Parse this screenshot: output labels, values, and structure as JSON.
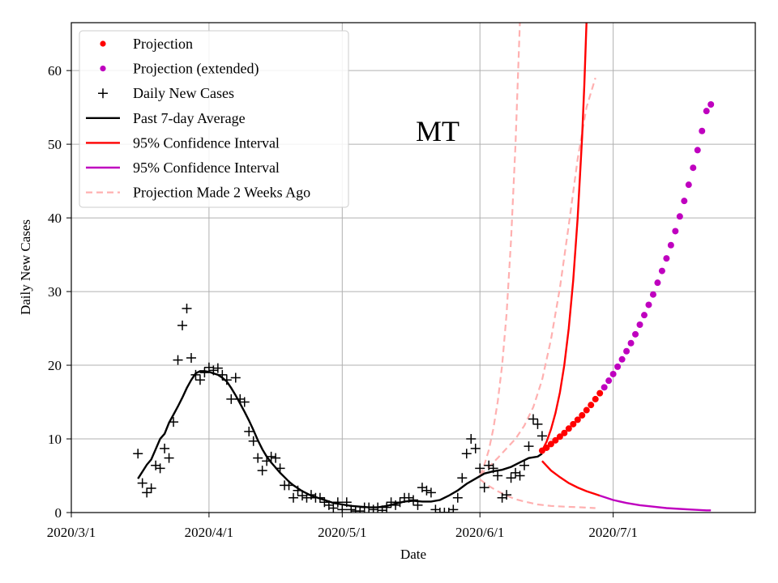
{
  "chart_data": {
    "type": "line",
    "state_label": "MT",
    "xlabel": "Date",
    "ylabel": "Daily New Cases",
    "x_start": "2020-03-01",
    "xlim": [
      "2020-03-01",
      "2020-08-02"
    ],
    "ylim": [
      0,
      66.5
    ],
    "x_ticks": [
      {
        "date": "2020-03-01",
        "label": "2020/3/1"
      },
      {
        "date": "2020-04-01",
        "label": "2020/4/1"
      },
      {
        "date": "2020-05-01",
        "label": "2020/5/1"
      },
      {
        "date": "2020-06-01",
        "label": "2020/6/1"
      },
      {
        "date": "2020-07-01",
        "label": "2020/7/1"
      }
    ],
    "y_ticks": [
      0,
      10,
      20,
      30,
      40,
      50,
      60
    ],
    "grid": true,
    "legend_position": "top-left",
    "legend": [
      {
        "label": "Projection",
        "kind": "dot",
        "color": "#ff0000"
      },
      {
        "label": "Projection (extended)",
        "kind": "dot",
        "color": "#bf00bf"
      },
      {
        "label": "Daily New Cases",
        "kind": "plus",
        "color": "#000000"
      },
      {
        "label": "Past 7-day Average",
        "kind": "line",
        "color": "#000000"
      },
      {
        "label": "95% Confidence Interval",
        "kind": "line",
        "color": "#ff0000"
      },
      {
        "label": "95% Confidence Interval",
        "kind": "line",
        "color": "#bf00bf"
      },
      {
        "label": "Projection Made 2 Weeks Ago",
        "kind": "dashed",
        "color": "#ffb0b0"
      }
    ],
    "series": {
      "daily_new_cases": [
        [
          "2020-03-16",
          8
        ],
        [
          "2020-03-17",
          4
        ],
        [
          "2020-03-18",
          2.7
        ],
        [
          "2020-03-19",
          3.3
        ],
        [
          "2020-03-20",
          6.4
        ],
        [
          "2020-03-21",
          6
        ],
        [
          "2020-03-22",
          8.7
        ],
        [
          "2020-03-23",
          7.4
        ],
        [
          "2020-03-24",
          12.3
        ],
        [
          "2020-03-25",
          20.7
        ],
        [
          "2020-03-26",
          25.4
        ],
        [
          "2020-03-27",
          27.7
        ],
        [
          "2020-03-28",
          21
        ],
        [
          "2020-03-29",
          18.7
        ],
        [
          "2020-03-30",
          18
        ],
        [
          "2020-03-31",
          19
        ],
        [
          "2020-04-01",
          19.7
        ],
        [
          "2020-04-02",
          19.3
        ],
        [
          "2020-04-03",
          19.6
        ],
        [
          "2020-04-04",
          18.7
        ],
        [
          "2020-04-05",
          18
        ],
        [
          "2020-04-06",
          15.4
        ],
        [
          "2020-04-07",
          18.3
        ],
        [
          "2020-04-08",
          15.4
        ],
        [
          "2020-04-09",
          15
        ],
        [
          "2020-04-10",
          11
        ],
        [
          "2020-04-11",
          9.7
        ],
        [
          "2020-04-12",
          7.4
        ],
        [
          "2020-04-13",
          5.7
        ],
        [
          "2020-04-14",
          7
        ],
        [
          "2020-04-15",
          7.6
        ],
        [
          "2020-04-16",
          7.4
        ],
        [
          "2020-04-17",
          6
        ],
        [
          "2020-04-18",
          3.7
        ],
        [
          "2020-04-19",
          3.7
        ],
        [
          "2020-04-20",
          2
        ],
        [
          "2020-04-21",
          3
        ],
        [
          "2020-04-22",
          2.3
        ],
        [
          "2020-04-23",
          2
        ],
        [
          "2020-04-24",
          2.4
        ],
        [
          "2020-04-25",
          2
        ],
        [
          "2020-04-26",
          2
        ],
        [
          "2020-04-27",
          1.4
        ],
        [
          "2020-04-28",
          1
        ],
        [
          "2020-04-29",
          0.6
        ],
        [
          "2020-04-30",
          1.4
        ],
        [
          "2020-05-01",
          0.4
        ],
        [
          "2020-05-02",
          1.4
        ],
        [
          "2020-05-03",
          0.4
        ],
        [
          "2020-05-04",
          0.2
        ],
        [
          "2020-05-05",
          0.2
        ],
        [
          "2020-05-06",
          0.7
        ],
        [
          "2020-05-07",
          0.7
        ],
        [
          "2020-05-08",
          0.4
        ],
        [
          "2020-05-09",
          0.7
        ],
        [
          "2020-05-10",
          0.3
        ],
        [
          "2020-05-11",
          0.7
        ],
        [
          "2020-05-12",
          1.4
        ],
        [
          "2020-05-13",
          1
        ],
        [
          "2020-05-14",
          1.4
        ],
        [
          "2020-05-15",
          2
        ],
        [
          "2020-05-16",
          2
        ],
        [
          "2020-05-17",
          1.7
        ],
        [
          "2020-05-18",
          1
        ],
        [
          "2020-05-19",
          3.4
        ],
        [
          "2020-05-20",
          3
        ],
        [
          "2020-05-21",
          2.7
        ],
        [
          "2020-05-22",
          0.4
        ],
        [
          "2020-05-23",
          0
        ],
        [
          "2020-05-24",
          0
        ],
        [
          "2020-05-25",
          0
        ],
        [
          "2020-05-26",
          0.4
        ],
        [
          "2020-05-27",
          2
        ],
        [
          "2020-05-28",
          4.7
        ],
        [
          "2020-05-29",
          8
        ],
        [
          "2020-05-30",
          10
        ],
        [
          "2020-05-31",
          8.7
        ],
        [
          "2020-06-01",
          6
        ],
        [
          "2020-06-02",
          3.4
        ],
        [
          "2020-06-03",
          6.4
        ],
        [
          "2020-06-04",
          6
        ],
        [
          "2020-06-05",
          5
        ],
        [
          "2020-06-06",
          2
        ],
        [
          "2020-06-07",
          2.4
        ],
        [
          "2020-06-08",
          4.7
        ],
        [
          "2020-06-09",
          5.4
        ],
        [
          "2020-06-10",
          5
        ],
        [
          "2020-06-11",
          6.4
        ],
        [
          "2020-06-12",
          9
        ],
        [
          "2020-06-13",
          12.7
        ],
        [
          "2020-06-14",
          12
        ],
        [
          "2020-06-15",
          10.4
        ]
      ],
      "past_7day_average": [
        [
          "2020-03-16",
          4.6
        ],
        [
          "2020-03-18",
          6.5
        ],
        [
          "2020-03-19",
          7.2
        ],
        [
          "2020-03-20",
          8.6
        ],
        [
          "2020-03-21",
          10
        ],
        [
          "2020-03-22",
          10.7
        ],
        [
          "2020-03-23",
          12.2
        ],
        [
          "2020-03-24",
          13.3
        ],
        [
          "2020-03-25",
          14.4
        ],
        [
          "2020-03-26",
          15.6
        ],
        [
          "2020-03-27",
          16.9
        ],
        [
          "2020-03-28",
          18
        ],
        [
          "2020-03-29",
          18.9
        ],
        [
          "2020-03-30",
          19.2
        ],
        [
          "2020-03-31",
          19.2
        ],
        [
          "2020-04-01",
          19.1
        ],
        [
          "2020-04-02",
          18.9
        ],
        [
          "2020-04-03",
          18.7
        ],
        [
          "2020-04-04",
          18.3
        ],
        [
          "2020-04-05",
          17.8
        ],
        [
          "2020-04-06",
          16.9
        ],
        [
          "2020-04-07",
          15.9
        ],
        [
          "2020-04-08",
          14.8
        ],
        [
          "2020-04-09",
          13.7
        ],
        [
          "2020-04-10",
          12.5
        ],
        [
          "2020-04-11",
          11.2
        ],
        [
          "2020-04-12",
          9.8
        ],
        [
          "2020-04-13",
          8.6
        ],
        [
          "2020-04-14",
          7.6
        ],
        [
          "2020-04-15",
          6.8
        ],
        [
          "2020-04-16",
          6.1
        ],
        [
          "2020-04-17",
          5.4
        ],
        [
          "2020-04-18",
          4.8
        ],
        [
          "2020-04-19",
          4.2
        ],
        [
          "2020-04-20",
          3.7
        ],
        [
          "2020-04-21",
          3.3
        ],
        [
          "2020-04-22",
          2.9
        ],
        [
          "2020-04-23",
          2.6
        ],
        [
          "2020-04-24",
          2.3
        ],
        [
          "2020-04-25",
          2.1
        ],
        [
          "2020-04-26",
          1.9
        ],
        [
          "2020-04-27",
          1.7
        ],
        [
          "2020-04-28",
          1.5
        ],
        [
          "2020-04-29",
          1.3
        ],
        [
          "2020-04-30",
          1.2
        ],
        [
          "2020-05-01",
          1.1
        ],
        [
          "2020-05-03",
          0.9
        ],
        [
          "2020-05-05",
          0.8
        ],
        [
          "2020-05-07",
          0.7
        ],
        [
          "2020-05-09",
          0.7
        ],
        [
          "2020-05-11",
          0.9
        ],
        [
          "2020-05-13",
          1.2
        ],
        [
          "2020-05-15",
          1.5
        ],
        [
          "2020-05-17",
          1.6
        ],
        [
          "2020-05-19",
          1.5
        ],
        [
          "2020-05-21",
          1.5
        ],
        [
          "2020-05-23",
          1.7
        ],
        [
          "2020-05-25",
          2.3
        ],
        [
          "2020-05-27",
          3
        ],
        [
          "2020-05-29",
          3.9
        ],
        [
          "2020-05-31",
          4.6
        ],
        [
          "2020-06-02",
          5.3
        ],
        [
          "2020-06-04",
          5.6
        ],
        [
          "2020-06-06",
          5.8
        ],
        [
          "2020-06-08",
          6.2
        ],
        [
          "2020-06-10",
          6.8
        ],
        [
          "2020-06-12",
          7.4
        ],
        [
          "2020-06-14",
          7.6
        ],
        [
          "2020-06-15",
          8
        ]
      ],
      "projection": [
        [
          "2020-06-15",
          8.4
        ],
        [
          "2020-06-16",
          8.8
        ],
        [
          "2020-06-17",
          9.3
        ],
        [
          "2020-06-18",
          9.8
        ],
        [
          "2020-06-19",
          10.3
        ],
        [
          "2020-06-20",
          10.8
        ],
        [
          "2020-06-21",
          11.4
        ],
        [
          "2020-06-22",
          12
        ],
        [
          "2020-06-23",
          12.6
        ],
        [
          "2020-06-24",
          13.2
        ],
        [
          "2020-06-25",
          13.9
        ],
        [
          "2020-06-26",
          14.6
        ],
        [
          "2020-06-27",
          15.4
        ],
        [
          "2020-06-28",
          16.2
        ]
      ],
      "projection_extended": [
        [
          "2020-06-29",
          17
        ],
        [
          "2020-06-30",
          17.9
        ],
        [
          "2020-07-01",
          18.8
        ],
        [
          "2020-07-02",
          19.8
        ],
        [
          "2020-07-03",
          20.8
        ],
        [
          "2020-07-04",
          21.9
        ],
        [
          "2020-07-05",
          23
        ],
        [
          "2020-07-06",
          24.2
        ],
        [
          "2020-07-07",
          25.5
        ],
        [
          "2020-07-08",
          26.8
        ],
        [
          "2020-07-09",
          28.2
        ],
        [
          "2020-07-10",
          29.6
        ],
        [
          "2020-07-11",
          31.2
        ],
        [
          "2020-07-12",
          32.8
        ],
        [
          "2020-07-13",
          34.5
        ],
        [
          "2020-07-14",
          36.3
        ],
        [
          "2020-07-15",
          38.2
        ],
        [
          "2020-07-16",
          40.2
        ],
        [
          "2020-07-17",
          42.3
        ],
        [
          "2020-07-18",
          44.5
        ],
        [
          "2020-07-19",
          46.8
        ],
        [
          "2020-07-20",
          49.2
        ],
        [
          "2020-07-21",
          51.8
        ],
        [
          "2020-07-22",
          54.5
        ],
        [
          "2020-07-23",
          55.4
        ]
      ],
      "ci_upper_red": [
        [
          "2020-06-15",
          8.4
        ],
        [
          "2020-06-16",
          9.6
        ],
        [
          "2020-06-17",
          11.3
        ],
        [
          "2020-06-18",
          13.5
        ],
        [
          "2020-06-19",
          16.3
        ],
        [
          "2020-06-20",
          20
        ],
        [
          "2020-06-21",
          25
        ],
        [
          "2020-06-22",
          31.5
        ],
        [
          "2020-06-23",
          40
        ],
        [
          "2020-06-24",
          51
        ],
        [
          "2020-06-24T12:00:00",
          58
        ],
        [
          "2020-06-25",
          66.5
        ]
      ],
      "ci_lower_red": [
        [
          "2020-06-15",
          7
        ],
        [
          "2020-06-17",
          5.7
        ],
        [
          "2020-06-19",
          4.8
        ],
        [
          "2020-06-21",
          4
        ],
        [
          "2020-06-23",
          3.4
        ],
        [
          "2020-06-25",
          2.9
        ],
        [
          "2020-06-27",
          2.5
        ],
        [
          "2020-06-28",
          2.3
        ]
      ],
      "ci_lower_purple": [
        [
          "2020-06-28",
          2.3
        ],
        [
          "2020-07-01",
          1.7
        ],
        [
          "2020-07-04",
          1.3
        ],
        [
          "2020-07-07",
          1
        ],
        [
          "2020-07-10",
          0.8
        ],
        [
          "2020-07-13",
          0.6
        ],
        [
          "2020-07-16",
          0.5
        ],
        [
          "2020-07-19",
          0.4
        ],
        [
          "2020-07-22",
          0.3
        ],
        [
          "2020-07-23",
          0.3
        ]
      ],
      "two_weeks_ago_upper": [
        [
          "2020-06-01",
          5
        ],
        [
          "2020-06-02",
          6.5
        ],
        [
          "2020-06-03",
          8.5
        ],
        [
          "2020-06-04",
          11.3
        ],
        [
          "2020-06-05",
          15
        ],
        [
          "2020-06-06",
          20
        ],
        [
          "2020-06-07",
          27
        ],
        [
          "2020-06-08",
          37
        ],
        [
          "2020-06-09",
          50
        ],
        [
          "2020-06-10",
          66.5
        ]
      ],
      "two_weeks_ago_mid": [
        [
          "2020-06-01",
          5.1
        ],
        [
          "2020-06-03",
          6.2
        ],
        [
          "2020-06-05",
          7.4
        ],
        [
          "2020-06-07",
          8.7
        ],
        [
          "2020-06-09",
          10
        ],
        [
          "2020-06-11",
          11.8
        ],
        [
          "2020-06-13",
          14.3
        ],
        [
          "2020-06-15",
          18
        ],
        [
          "2020-06-17",
          23.5
        ],
        [
          "2020-06-19",
          30.5
        ],
        [
          "2020-06-21",
          39
        ],
        [
          "2020-06-23",
          48
        ],
        [
          "2020-06-25",
          55
        ],
        [
          "2020-06-27",
          59
        ]
      ],
      "two_weeks_ago_lower": [
        [
          "2020-06-01",
          4.5
        ],
        [
          "2020-06-03",
          3.6
        ],
        [
          "2020-06-05",
          2.9
        ],
        [
          "2020-06-07",
          2.3
        ],
        [
          "2020-06-09",
          1.8
        ],
        [
          "2020-06-11",
          1.5
        ],
        [
          "2020-06-14",
          1.1
        ],
        [
          "2020-06-17",
          0.9
        ],
        [
          "2020-06-20",
          0.8
        ],
        [
          "2020-06-24",
          0.7
        ],
        [
          "2020-06-27",
          0.6
        ]
      ]
    },
    "colors": {
      "projection": "#ff0000",
      "projection_extended": "#bf00bf",
      "daily": "#000000",
      "average": "#000000",
      "ci_red": "#ff0000",
      "ci_purple": "#bf00bf",
      "two_weeks": "#ffb0b0",
      "grid": "#b0b0b0"
    }
  }
}
